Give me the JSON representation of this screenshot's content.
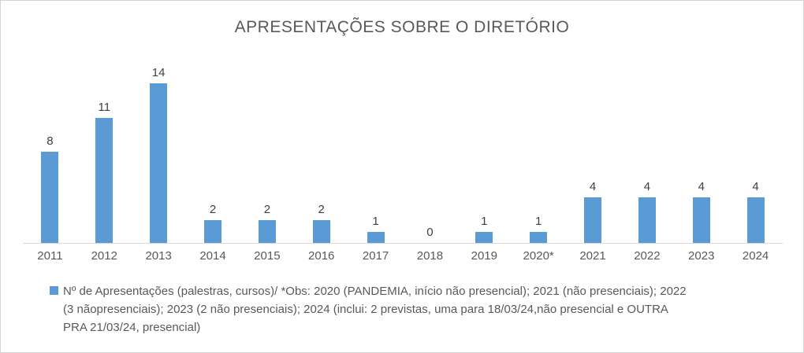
{
  "chart_data": {
    "type": "bar",
    "title": "APRESENTAÇÕES SOBRE O DIRETÓRIO",
    "categories": [
      "2011",
      "2012",
      "2013",
      "2014",
      "2015",
      "2016",
      "2017",
      "2018",
      "2019",
      "2020*",
      "2021",
      "2022",
      "2023",
      "2024"
    ],
    "values": [
      8,
      11,
      14,
      2,
      2,
      2,
      1,
      0,
      1,
      1,
      4,
      4,
      4,
      4
    ],
    "xlabel": "",
    "ylabel": "",
    "ylim": [
      0,
      14
    ],
    "grid": false,
    "data_labels": true,
    "legend_position": "bottom",
    "colors": {
      "bar": "#5b9bd5",
      "title_text": "#595959",
      "axis_line": "#d9d9d9",
      "tick_text": "#595959",
      "legend_marker": "#5b9bd5"
    },
    "legend": {
      "lines": [
        "Nº de Apresentações (palestras, cursos)/ *Obs: 2020 (PANDEMIA, início não presencial); 2021 (não presenciais); 2022",
        "(3 nãopresenciais); 2023 (2 não presenciais); 2024 (inclui: 2 previstas, uma para 18/03/24,não presencial e OUTRA",
        "PRA 21/03/24, presencial)"
      ]
    }
  }
}
